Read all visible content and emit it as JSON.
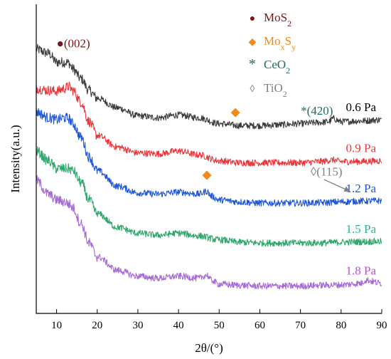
{
  "chart_data": {
    "type": "line",
    "xlabel": "2θ/(°)",
    "ylabel": "Intensity(a.u.)",
    "xlim": [
      5,
      90
    ],
    "xticks": [
      10,
      20,
      30,
      40,
      50,
      60,
      70,
      80,
      90
    ],
    "yticks_shown": false,
    "grid": false,
    "legend_position": "top-center",
    "legend": [
      {
        "marker": "●",
        "label": "MoS",
        "sub": "2",
        "sub2": "",
        "color": "#7b1416"
      },
      {
        "marker": "◆",
        "label": "Mo",
        "sub": "x",
        "mid": "S",
        "sub2": "y",
        "color": "#f08a1c"
      },
      {
        "marker": "*",
        "label": "CeO",
        "sub": "2",
        "sub2": "",
        "color": "#1f6e4a"
      },
      {
        "marker": "◊",
        "label": "TiO",
        "sub": "2",
        "sub2": "",
        "color": "#808080"
      }
    ],
    "series": [
      {
        "name": "0.6 Pa",
        "color": "#3c3c3c",
        "label_color": "#000000",
        "x": [
          5,
          8,
          10,
          12,
          13,
          14,
          16,
          18,
          20,
          25,
          30,
          35,
          40,
          45,
          50,
          55,
          60,
          65,
          70,
          75,
          77,
          78,
          80,
          85,
          90
        ],
        "y": [
          5.05,
          4.95,
          4.72,
          4.72,
          4.7,
          4.55,
          4.3,
          4.0,
          3.8,
          3.55,
          3.35,
          3.3,
          3.37,
          3.3,
          3.15,
          3.1,
          3.1,
          3.12,
          3.15,
          3.18,
          3.2,
          3.28,
          3.2,
          3.22,
          3.25
        ]
      },
      {
        "name": "0.9 Pa",
        "color": "#e8383c",
        "label_color": "#e8383c",
        "x": [
          5,
          8,
          10,
          12,
          13,
          14,
          16,
          18,
          20,
          25,
          30,
          35,
          40,
          45,
          50,
          55,
          60,
          65,
          70,
          75,
          78,
          80,
          85,
          90
        ],
        "y": [
          4.05,
          4.0,
          3.98,
          4.05,
          4.1,
          4.0,
          3.7,
          3.2,
          2.85,
          2.55,
          2.4,
          2.38,
          2.45,
          2.35,
          2.2,
          2.15,
          2.15,
          2.15,
          2.15,
          2.18,
          2.22,
          2.18,
          2.18,
          2.2
        ]
      },
      {
        "name": "1.2 Pa",
        "color": "#1f57d6",
        "label_color": "#1f57d6",
        "x": [
          5,
          8,
          10,
          12,
          13,
          14,
          16,
          18,
          20,
          25,
          30,
          35,
          40,
          45,
          47,
          48,
          50,
          55,
          60,
          65,
          70,
          75,
          80,
          85,
          90
        ],
        "y": [
          3.45,
          3.3,
          3.25,
          3.3,
          3.28,
          3.15,
          2.8,
          2.3,
          1.95,
          1.55,
          1.38,
          1.35,
          1.4,
          1.35,
          1.42,
          1.3,
          1.2,
          1.15,
          1.12,
          1.12,
          1.12,
          1.13,
          1.15,
          1.17,
          1.18
        ]
      },
      {
        "name": "1.5 Pa",
        "color": "#2ea86b",
        "label_color": "#2bb980",
        "x": [
          5,
          8,
          10,
          12,
          13,
          14,
          16,
          18,
          20,
          25,
          30,
          35,
          40,
          45,
          50,
          55,
          60,
          65,
          70,
          75,
          80,
          85,
          90
        ],
        "y": [
          2.45,
          2.2,
          2.0,
          2.0,
          2.0,
          1.95,
          1.65,
          1.2,
          0.85,
          0.5,
          0.35,
          0.3,
          0.35,
          0.28,
          0.18,
          0.12,
          0.1,
          0.1,
          0.1,
          0.1,
          0.12,
          0.13,
          0.14
        ]
      },
      {
        "name": "1.8 Pa",
        "color": "#a66bd6",
        "label_color": "#c04fd8",
        "x": [
          5,
          8,
          10,
          12,
          13,
          14,
          16,
          18,
          20,
          25,
          30,
          35,
          40,
          45,
          47,
          48,
          50,
          55,
          60,
          65,
          70,
          75,
          80,
          85,
          86,
          90
        ],
        "y": [
          1.7,
          1.35,
          1.2,
          1.15,
          1.1,
          1.0,
          0.6,
          0.1,
          -0.25,
          -0.6,
          -0.75,
          -0.8,
          -0.75,
          -0.8,
          -0.72,
          -0.85,
          -0.95,
          -0.98,
          -1.0,
          -1.0,
          -1.0,
          -0.98,
          -0.97,
          -0.93,
          -0.85,
          -0.93
        ]
      }
    ],
    "annotations": [
      {
        "text": "●(002)",
        "x": 10,
        "y": 5.1,
        "color": "#7b1416",
        "kind": "text"
      },
      {
        "text": "◆",
        "x": 54,
        "y": 3.35,
        "color": "#f08a1c",
        "kind": "marker"
      },
      {
        "text": "◆",
        "x": 47,
        "y": 1.75,
        "color": "#f08a1c",
        "kind": "marker"
      },
      {
        "text": "*(420)",
        "x": 78,
        "y": 3.38,
        "color": "#1f6e4a",
        "kind": "text_end"
      },
      {
        "text": "◊(115)",
        "x": 72.5,
        "y": 1.82,
        "color": "#808080",
        "kind": "text"
      }
    ]
  }
}
